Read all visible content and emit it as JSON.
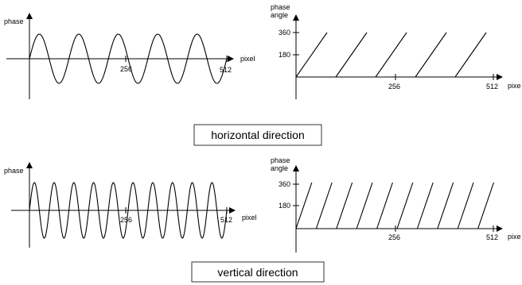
{
  "top": {
    "caption": "horizontal direction",
    "wave": {
      "y_label": "phase",
      "x_label": "pixel",
      "tick_mid": "256",
      "tick_end": "512",
      "cycles": 5
    },
    "saw": {
      "y_label_line1": "phase",
      "y_label_line2": "angle",
      "x_label": "pixe",
      "y_tick_high": "360",
      "y_tick_low": "180",
      "tick_mid": "256",
      "tick_end": "512",
      "cycles": 5
    }
  },
  "bottom": {
    "caption": "vertical direction",
    "wave": {
      "y_label": "phase",
      "x_label": "pixel",
      "tick_mid": "256",
      "tick_end": "512",
      "cycles": 10
    },
    "saw": {
      "y_label_line1": "phase",
      "y_label_line2": "angle",
      "x_label": "pixe",
      "y_tick_high": "360",
      "y_tick_low": "180",
      "tick_mid": "256",
      "tick_end": "512",
      "cycles": 10
    }
  }
}
